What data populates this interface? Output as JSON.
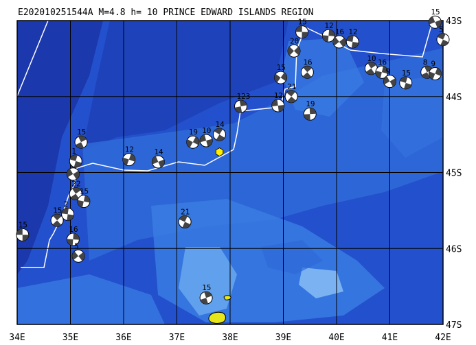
{
  "header": {
    "title": "E202010251544A  M=4.8  h= 10 PRINCE EDWARD ISLANDS REGION"
  },
  "axes": {
    "lon_labels": [
      "34E",
      "35E",
      "36E",
      "37E",
      "38E",
      "39E",
      "40E",
      "41E",
      "42E"
    ],
    "lat_labels": [
      "43S",
      "44S",
      "45S",
      "46S",
      "47S"
    ],
    "lon_range": [
      34,
      42
    ],
    "lat_range": [
      -43,
      -47
    ]
  },
  "colors": {
    "ocean_deep": "#1a3fc0",
    "ocean_mid": "#2d6ee0",
    "ocean_shallow": "#7fb8f5",
    "land": "#e6e61a",
    "epicenter": "#ffee00",
    "boundary": "#ffffff",
    "grid": "#000000"
  },
  "epicenter": {
    "lon": 37.8,
    "lat": -44.73,
    "marker": "hexagon-icon"
  },
  "islands": [
    {
      "name_key": "prince-edward",
      "lon": 37.95,
      "lat": -46.85
    },
    {
      "name_key": "marion",
      "lon": 37.75,
      "lat": -46.9
    }
  ],
  "events": [
    {
      "label": "15",
      "lon": 34.1,
      "lat": -45.82
    },
    {
      "label": "15",
      "lon": 34.75,
      "lat": -45.63
    },
    {
      "label": "16",
      "lon": 35.05,
      "lat": -45.88
    },
    {
      "label": "5",
      "lon": 35.15,
      "lat": -46.1
    },
    {
      "label": "2",
      "lon": 34.95,
      "lat": -45.55
    },
    {
      "label": "22",
      "lon": 35.1,
      "lat": -45.28
    },
    {
      "label": "15",
      "lon": 35.25,
      "lat": -45.38
    },
    {
      "label": "1",
      "lon": 35.05,
      "lat": -45.02
    },
    {
      "label": "1",
      "lon": 35.1,
      "lat": -44.85
    },
    {
      "label": "15",
      "lon": 35.2,
      "lat": -44.6
    },
    {
      "label": "12",
      "lon": 36.1,
      "lat": -44.83
    },
    {
      "label": "14",
      "lon": 36.65,
      "lat": -44.86
    },
    {
      "label": "21",
      "lon": 37.15,
      "lat": -45.65
    },
    {
      "label": "15",
      "lon": 37.55,
      "lat": -46.65
    },
    {
      "label": "19",
      "lon": 37.3,
      "lat": -44.6
    },
    {
      "label": "10",
      "lon": 37.55,
      "lat": -44.58
    },
    {
      "label": "14",
      "lon": 37.8,
      "lat": -44.5
    },
    {
      "label": "123",
      "lon": 38.2,
      "lat": -44.13
    },
    {
      "label": "15",
      "lon": 38.95,
      "lat": -43.75
    },
    {
      "label": "12",
      "lon": 38.9,
      "lat": -44.12
    },
    {
      "label": "21",
      "lon": 39.15,
      "lat": -44.0
    },
    {
      "label": "19",
      "lon": 39.5,
      "lat": -44.23
    },
    {
      "label": "20",
      "lon": 39.2,
      "lat": -43.4
    },
    {
      "label": "15",
      "lon": 39.35,
      "lat": -43.15
    },
    {
      "label": "16",
      "lon": 39.45,
      "lat": -43.68
    },
    {
      "label": "12",
      "lon": 39.85,
      "lat": -43.2
    },
    {
      "label": "16",
      "lon": 40.05,
      "lat": -43.28
    },
    {
      "label": "12",
      "lon": 40.3,
      "lat": -43.28
    },
    {
      "label": "10",
      "lon": 40.65,
      "lat": -43.63
    },
    {
      "label": "16",
      "lon": 40.85,
      "lat": -43.68
    },
    {
      "label": "9",
      "lon": 41.0,
      "lat": -43.8
    },
    {
      "label": "15",
      "lon": 41.3,
      "lat": -43.82
    },
    {
      "label": "8",
      "lon": 41.7,
      "lat": -43.68
    },
    {
      "label": "9",
      "lon": 41.85,
      "lat": -43.7
    },
    {
      "label": "15",
      "lon": 41.85,
      "lat": -43.02
    },
    {
      "label": "5",
      "lon": 42.0,
      "lat": -43.25
    }
  ]
}
